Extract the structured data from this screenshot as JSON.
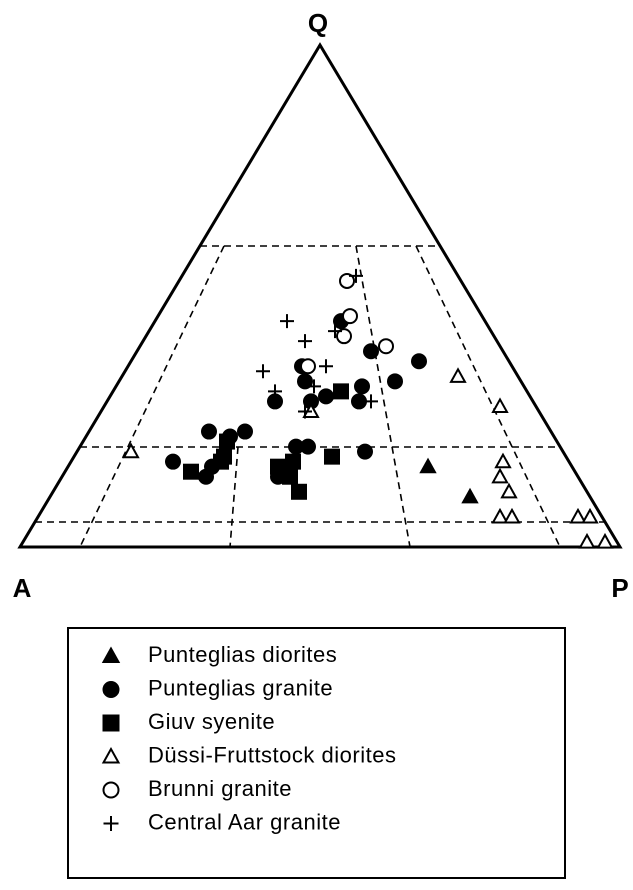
{
  "chart_data": {
    "type": "ternary",
    "apices": [
      "Q",
      "A",
      "P"
    ],
    "series": [
      {
        "name": "Punteglias diorites",
        "marker": "triangle",
        "filled": true,
        "points": [
          [
            16,
            24,
            60
          ],
          [
            10,
            20,
            70
          ]
        ]
      },
      {
        "name": "Punteglias granite",
        "marker": "circle",
        "filled": true,
        "points": [
          [
            23,
            57,
            20
          ],
          [
            22,
            54,
            24
          ],
          [
            23,
            51,
            26
          ],
          [
            17,
            66,
            17
          ],
          [
            14,
            62,
            24
          ],
          [
            16,
            60,
            24
          ],
          [
            14,
            50,
            36
          ],
          [
            16,
            47,
            37
          ],
          [
            20,
            44,
            36
          ],
          [
            20,
            42,
            38
          ],
          [
            19,
            33,
            48
          ],
          [
            39,
            22,
            39
          ],
          [
            37,
            15,
            48
          ],
          [
            33,
            21,
            46
          ],
          [
            33,
            36,
            31
          ],
          [
            29,
            43,
            28
          ],
          [
            29,
            37,
            34
          ],
          [
            30,
            34,
            36
          ],
          [
            32,
            27,
            41
          ],
          [
            29,
            29,
            42
          ],
          [
            45,
            24,
            31
          ],
          [
            36,
            35,
            29
          ]
        ]
      },
      {
        "name": "Giuv syenite",
        "marker": "square",
        "filled": true,
        "points": [
          [
            15,
            64,
            21
          ],
          [
            17,
            58,
            25
          ],
          [
            21,
            55,
            24
          ],
          [
            18,
            57,
            25
          ],
          [
            16,
            49,
            35
          ],
          [
            17,
            46,
            37
          ],
          [
            14,
            48,
            38
          ],
          [
            11,
            48,
            41
          ],
          [
            18,
            39,
            43
          ],
          [
            31,
            31,
            38
          ]
        ]
      },
      {
        "name": "Düssi-Fruttstock diorites",
        "marker": "triangle",
        "filled": false,
        "points": [
          [
            19,
            72,
            9
          ],
          [
            27,
            38,
            35
          ],
          [
            34,
            10,
            56
          ],
          [
            28,
            6,
            66
          ],
          [
            17,
            11,
            72
          ],
          [
            14,
            13,
            73
          ],
          [
            11,
            13,
            76
          ],
          [
            6,
            17,
            77
          ],
          [
            6,
            15,
            79
          ],
          [
            6,
            4,
            90
          ],
          [
            6,
            2,
            92
          ],
          [
            1,
            5,
            94
          ],
          [
            1,
            2,
            97
          ]
        ]
      },
      {
        "name": "Brunni granite",
        "marker": "circle",
        "filled": false,
        "points": [
          [
            53,
            19,
            28
          ],
          [
            46,
            22,
            32
          ],
          [
            42,
            25,
            33
          ],
          [
            40,
            19,
            41
          ],
          [
            36,
            34,
            30
          ]
        ]
      },
      {
        "name": "Central Aar granite",
        "marker": "plus",
        "filled": false,
        "points": [
          [
            54,
            17,
            29
          ],
          [
            45,
            33,
            22
          ],
          [
            43,
            26,
            31
          ],
          [
            41,
            32,
            27
          ],
          [
            35,
            42,
            23
          ],
          [
            31,
            42,
            27
          ],
          [
            36,
            31,
            33
          ],
          [
            32,
            35,
            33
          ],
          [
            27,
            39,
            34
          ],
          [
            29,
            27,
            44
          ]
        ]
      }
    ]
  }
}
